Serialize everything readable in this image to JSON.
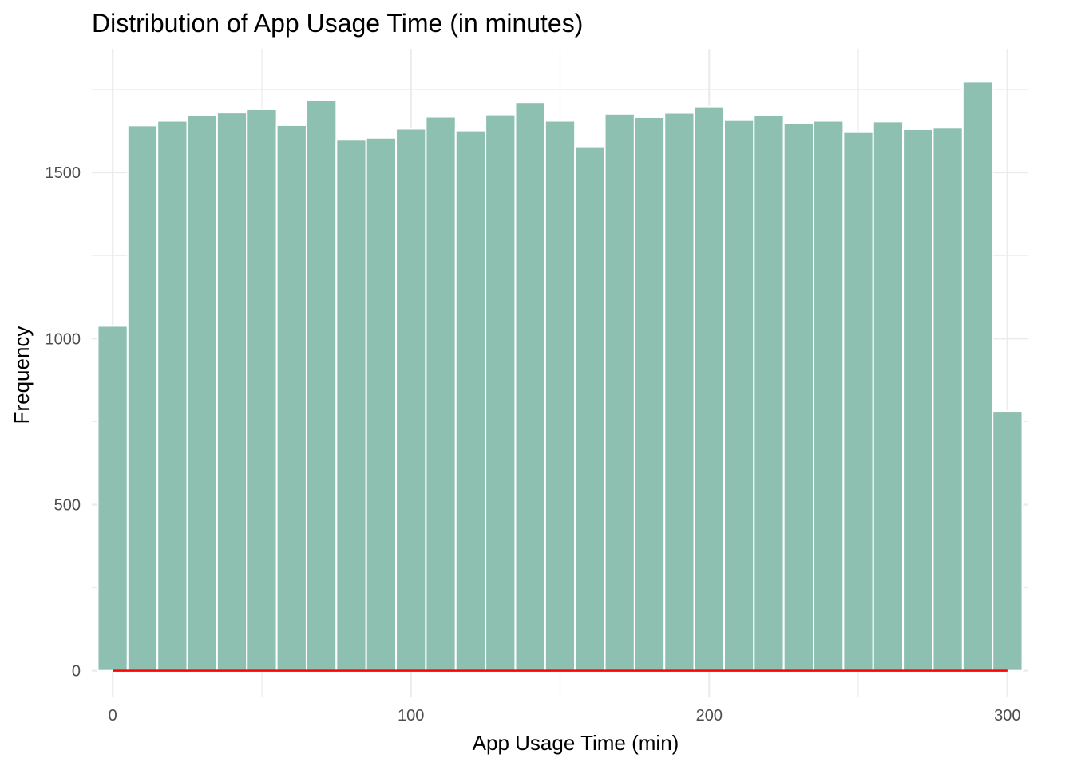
{
  "chart_data": {
    "type": "bar",
    "title": "Distribution of App Usage Time (in minutes)",
    "xlabel": "App Usage Time (min)",
    "ylabel": "Frequency",
    "xlim": [
      -7,
      307
    ],
    "ylim": [
      -80,
      1870
    ],
    "x_ticks": [
      0,
      100,
      200,
      300
    ],
    "x_tick_labels": [
      "0",
      "100",
      "200",
      "300"
    ],
    "y_ticks": [
      0,
      500,
      1000,
      1500
    ],
    "y_tick_labels": [
      "0",
      "500",
      "1000",
      "1500"
    ],
    "grid": true,
    "bin_width": 10,
    "bin_centers": [
      0,
      10,
      20,
      30,
      40,
      50,
      60,
      70,
      80,
      90,
      100,
      110,
      120,
      130,
      140,
      150,
      160,
      170,
      180,
      190,
      200,
      210,
      220,
      230,
      240,
      250,
      260,
      270,
      280,
      290,
      300
    ],
    "values": [
      1038,
      1641,
      1655,
      1672,
      1680,
      1690,
      1642,
      1717,
      1598,
      1604,
      1631,
      1667,
      1626,
      1674,
      1711,
      1655,
      1578,
      1676,
      1666,
      1679,
      1698,
      1657,
      1673,
      1649,
      1655,
      1621,
      1653,
      1630,
      1634,
      1773,
      782
    ],
    "reference_line": {
      "y": 0,
      "x_start": 0,
      "x_end": 300
    },
    "colors": {
      "bar_fill": "#8ec0b2",
      "bar_stroke": "#ffffff",
      "reference_line": "#ff0000",
      "grid": "#ebebeb"
    }
  }
}
